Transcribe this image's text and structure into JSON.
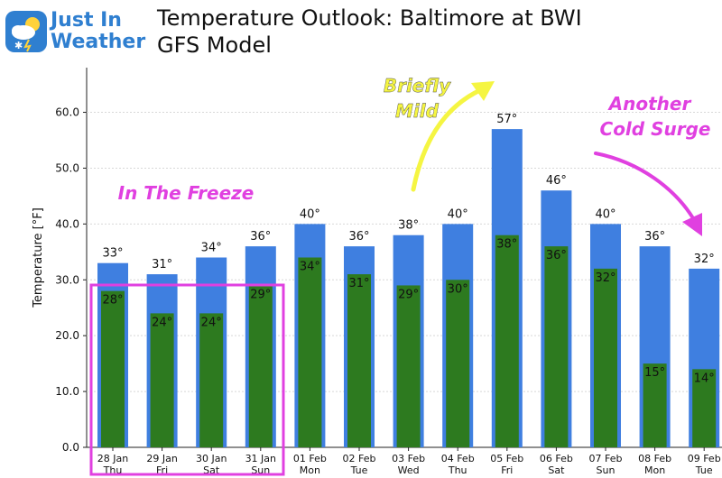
{
  "header": {
    "logo": {
      "line1": "Just In",
      "line2": "Weather",
      "icon": "cloud-sun-snow-icon"
    },
    "title": "Temperature Outlook: Baltimore at BWI",
    "subtitle": "GFS Model"
  },
  "colors": {
    "high_bar": "#3f7fe0",
    "low_bar": "#2d7a1f",
    "annotation_yellow": "#f5f542",
    "annotation_magenta": "#e040e0",
    "highlight_box": "#e040e0"
  },
  "chart_data": {
    "type": "bar",
    "title": "Temperature Outlook: Baltimore at BWI",
    "ylabel": "Temperature [°F]",
    "ylim": [
      0,
      68
    ],
    "yticks": [
      "0.0",
      "10.0",
      "20.0",
      "30.0",
      "40.0",
      "50.0",
      "60.0"
    ],
    "grid": true,
    "categories": [
      [
        "28 Jan",
        "Thu"
      ],
      [
        "29 Jan",
        "Fri"
      ],
      [
        "30 Jan",
        "Sat"
      ],
      [
        "31 Jan",
        "Sun"
      ],
      [
        "01 Feb",
        "Mon"
      ],
      [
        "02 Feb",
        "Tue"
      ],
      [
        "03 Feb",
        "Wed"
      ],
      [
        "04 Feb",
        "Thu"
      ],
      [
        "05 Feb",
        "Fri"
      ],
      [
        "06 Feb",
        "Sat"
      ],
      [
        "07 Feb",
        "Sun"
      ],
      [
        "08 Feb",
        "Mon"
      ],
      [
        "09 Feb",
        "Tue"
      ]
    ],
    "series": [
      {
        "values": [
          33,
          31,
          34,
          36,
          40,
          36,
          38,
          40,
          57,
          46,
          40,
          36,
          32
        ],
        "labels": [
          "33°",
          "31°",
          "34°",
          "36°",
          "40°",
          "36°",
          "38°",
          "40°",
          "57°",
          "46°",
          "40°",
          "36°",
          "32°"
        ]
      },
      {
        "values": [
          28,
          24,
          24,
          29,
          34,
          31,
          29,
          30,
          38,
          36,
          32,
          15,
          14
        ],
        "labels": [
          "28°",
          "24°",
          "24°",
          "29°",
          "34°",
          "31°",
          "29°",
          "30°",
          "38°",
          "36°",
          "32°",
          "15°",
          "14°"
        ]
      }
    ],
    "annotations": [
      {
        "text": "In The Freeze",
        "color": "#e040e0"
      },
      {
        "text": [
          "Briefly",
          "Mild"
        ],
        "color": "#f5f542"
      },
      {
        "text": [
          "Another",
          "Cold Surge"
        ],
        "color": "#e040e0"
      }
    ]
  }
}
